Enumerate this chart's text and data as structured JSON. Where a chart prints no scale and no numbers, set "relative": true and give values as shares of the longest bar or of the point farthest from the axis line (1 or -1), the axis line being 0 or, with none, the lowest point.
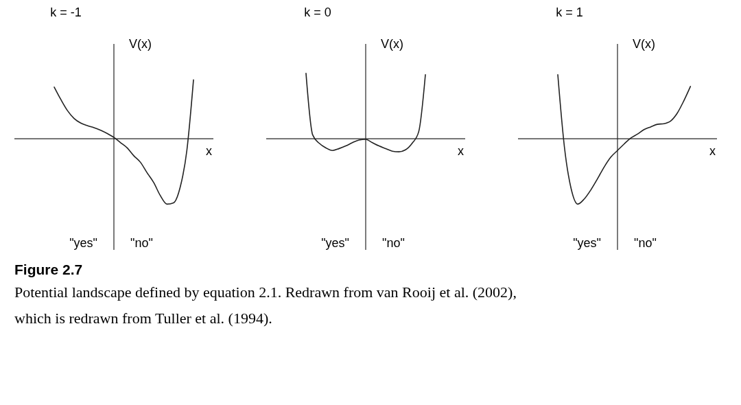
{
  "chart_data": [
    {
      "type": "line",
      "title": "k = -1",
      "xlabel": "x",
      "ylabel": "V(x)",
      "relative": true,
      "annotations": [
        "\"yes\"",
        "\"no\""
      ],
      "categories": [
        null,
        null,
        null,
        null,
        null,
        null,
        null,
        null,
        null,
        null,
        null,
        null,
        null,
        null,
        null,
        null,
        null,
        null,
        null,
        null,
        null,
        null,
        null,
        null,
        null,
        null,
        null,
        null,
        null,
        null,
        null
      ],
      "series": [
        {
          "color": "#222222",
          "values": [
            null,
            null,
            null,
            null,
            null,
            null,
            0.79,
            0.6,
            0.43,
            0.31,
            0.24,
            0.2,
            0.17,
            0.13,
            0.08,
            0.02,
            -0.06,
            -0.14,
            -0.26,
            -0.36,
            -0.52,
            -0.67,
            -0.87,
            -1,
            -0.98,
            -0.74,
            -0.18,
            0.9,
            null,
            null,
            null
          ]
        }
      ]
    },
    {
      "type": "line",
      "title": "k = 0",
      "xlabel": "x",
      "ylabel": "V(x)",
      "relative": true,
      "annotations": [
        "\"yes\"",
        "\"no\""
      ],
      "categories": [
        null,
        null,
        null,
        null,
        null,
        null,
        null,
        null,
        null,
        null,
        null,
        null,
        null,
        null,
        null,
        null,
        null,
        null,
        null,
        null,
        null,
        null,
        null,
        null,
        null,
        null,
        null,
        null,
        null,
        null,
        null
      ],
      "series": [
        {
          "color": "#222222",
          "values": [
            null,
            null,
            null,
            null,
            null,
            null,
            1,
            0.06,
            -0.07,
            -0.14,
            -0.18,
            -0.15,
            -0.11,
            -0.06,
            -0.02,
            -0.01,
            -0.06,
            -0.11,
            -0.15,
            -0.19,
            -0.2,
            -0.17,
            -0.07,
            0.11,
            0.98,
            null,
            null,
            null,
            null,
            null,
            null
          ]
        }
      ]
    },
    {
      "type": "line",
      "title": "k = 1",
      "xlabel": "x",
      "ylabel": "V(x)",
      "relative": true,
      "annotations": [
        "\"yes\"",
        "\"no\""
      ],
      "categories": [
        null,
        null,
        null,
        null,
        null,
        null,
        null,
        null,
        null,
        null,
        null,
        null,
        null,
        null,
        null,
        null,
        null,
        null,
        null,
        null,
        null,
        null,
        null,
        null,
        null,
        null,
        null,
        null,
        null,
        null,
        null
      ],
      "series": [
        {
          "color": "#222222",
          "values": [
            null,
            null,
            null,
            null,
            null,
            null,
            0.98,
            -0.13,
            -0.76,
            -1,
            -0.92,
            -0.78,
            -0.61,
            -0.43,
            -0.28,
            -0.18,
            -0.08,
            0.01,
            0.07,
            0.14,
            0.18,
            0.22,
            0.23,
            0.27,
            0.39,
            0.58,
            0.8,
            null,
            null,
            null,
            null
          ]
        }
      ]
    },
    {
      "type": "other",
      "title": "Figure 2.7",
      "annotations": [
        "Potential landscape defined by equation 2.1. Redrawn from van Rooij et al. (2002),",
        "which is redrawn from Tuller et al. (1994)."
      ]
    }
  ]
}
